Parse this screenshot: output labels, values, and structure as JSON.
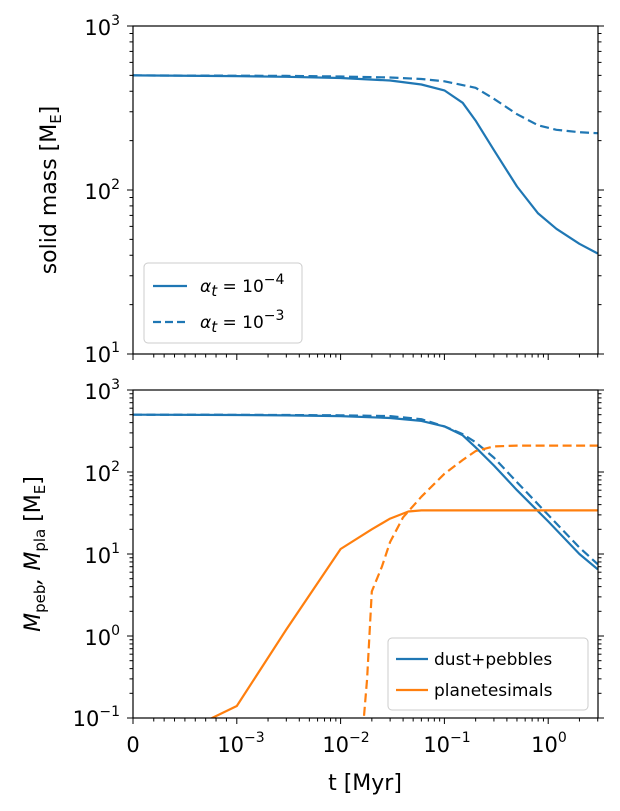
{
  "colors": {
    "blue": "#1f77b4",
    "orange": "#ff7f0e",
    "axis": "#000000",
    "legend_border": "#cccccc"
  },
  "chart_data": [
    {
      "type": "line",
      "title": "",
      "ylabel_text": "solid mass [M",
      "ylabel_sub": "E",
      "ylabel_close": "]",
      "yscale": "log",
      "ylim": [
        10,
        1000
      ],
      "y_ticks": [
        {
          "base": "10",
          "exp": "1"
        },
        {
          "base": "10",
          "exp": "2"
        },
        {
          "base": "10",
          "exp": "3"
        }
      ],
      "xscale": "symlog",
      "xlim": [
        0,
        3
      ],
      "grid": false,
      "legend_position": "lower-left",
      "legend": [
        {
          "series": "alpha_1e-4",
          "prefix": "α",
          "sub": "t",
          "eq": " = 10",
          "sup": "−4",
          "style": "solid"
        },
        {
          "series": "alpha_1e-3",
          "prefix": "α",
          "sub": "t",
          "eq": " = 10",
          "sup": "−3",
          "style": "dashed"
        }
      ],
      "series": [
        {
          "key": "alpha_1e-4",
          "color": "blue",
          "style": "solid",
          "x": [
            0,
            0.001,
            0.003,
            0.01,
            0.03,
            0.06,
            0.1,
            0.15,
            0.2,
            0.3,
            0.5,
            0.8,
            1.2,
            2.0,
            3.0
          ],
          "y": [
            500,
            495,
            490,
            482,
            465,
            440,
            405,
            340,
            265,
            175,
            105,
            72,
            58,
            47,
            41
          ]
        },
        {
          "key": "alpha_1e-3",
          "color": "blue",
          "style": "dashed",
          "x": [
            0,
            0.001,
            0.003,
            0.01,
            0.03,
            0.06,
            0.1,
            0.2,
            0.3,
            0.5,
            0.8,
            1.2,
            2.0,
            3.0
          ],
          "y": [
            500,
            498,
            496,
            492,
            485,
            475,
            460,
            420,
            360,
            290,
            248,
            233,
            225,
            222
          ]
        }
      ]
    },
    {
      "type": "line",
      "title": "",
      "ylabel_text": "M",
      "ylabel_sub1": "peb",
      "ylabel_mid": ", M",
      "ylabel_sub2": "pla",
      "ylabel_close": " [M",
      "ylabel_sub3": "E",
      "ylabel_end": "]",
      "yscale": "log",
      "ylim": [
        0.1,
        1000
      ],
      "y_ticks": [
        {
          "base": "10",
          "exp": "−1"
        },
        {
          "base": "10",
          "exp": "0"
        },
        {
          "base": "10",
          "exp": "1"
        },
        {
          "base": "10",
          "exp": "2"
        },
        {
          "base": "10",
          "exp": "3"
        }
      ],
      "xscale": "symlog",
      "xlim": [
        0,
        3
      ],
      "x_ticks": [
        {
          "base": "0",
          "exp": ""
        },
        {
          "base": "10",
          "exp": "−3"
        },
        {
          "base": "10",
          "exp": "−2"
        },
        {
          "base": "10",
          "exp": "−1"
        },
        {
          "base": "10",
          "exp": "0"
        }
      ],
      "xlabel": "t [Myr]",
      "grid": false,
      "legend_position": "lower-right",
      "legend": [
        {
          "label": "dust+pebbles",
          "color": "blue"
        },
        {
          "label": "planetesimals",
          "color": "orange"
        }
      ],
      "series": [
        {
          "key": "dust_pebbles_1e-4",
          "color": "blue",
          "style": "solid",
          "x": [
            0,
            0.001,
            0.003,
            0.01,
            0.03,
            0.06,
            0.1,
            0.15,
            0.2,
            0.3,
            0.5,
            1.0,
            2.0,
            3.0
          ],
          "y": [
            500,
            495,
            490,
            480,
            455,
            420,
            360,
            280,
            200,
            120,
            60,
            25,
            10,
            6.5
          ]
        },
        {
          "key": "dust_pebbles_1e-3",
          "color": "blue",
          "style": "dashed",
          "x": [
            0,
            0.001,
            0.003,
            0.01,
            0.03,
            0.06,
            0.1,
            0.15,
            0.2,
            0.3,
            0.5,
            1.0,
            2.0,
            3.0
          ],
          "y": [
            500,
            498,
            496,
            492,
            480,
            440,
            360,
            290,
            230,
            150,
            75,
            30,
            12,
            7.5
          ]
        },
        {
          "key": "planetesimals_1e-4",
          "color": "orange",
          "style": "solid",
          "x": [
            0.0004,
            0.001,
            0.003,
            0.01,
            0.02,
            0.03,
            0.045,
            0.06,
            0.1,
            0.3,
            1.0,
            3.0
          ],
          "y": [
            0.06,
            0.14,
            1.2,
            11.5,
            20,
            27,
            33,
            34,
            34,
            34,
            34,
            34
          ]
        },
        {
          "key": "planetesimals_1e-3",
          "color": "orange",
          "style": "dashed",
          "x": [
            0.016,
            0.018,
            0.02,
            0.025,
            0.03,
            0.04,
            0.06,
            0.1,
            0.15,
            0.2,
            0.3,
            0.5,
            1.0,
            3.0
          ],
          "y": [
            0.05,
            0.3,
            3.5,
            7,
            14,
            28,
            50,
            95,
            140,
            180,
            205,
            210,
            210,
            210
          ]
        }
      ]
    }
  ]
}
